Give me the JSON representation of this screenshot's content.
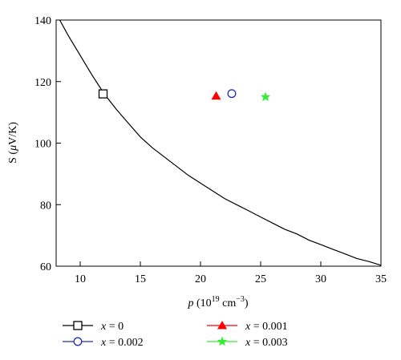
{
  "chart_data": {
    "type": "scatter",
    "title": "",
    "xlabel": "p (10^19 cm^-3)",
    "ylabel": "S (μV/K)",
    "xlim": [
      8,
      35
    ],
    "ylim": [
      60,
      140
    ],
    "xticks": [
      10,
      15,
      20,
      25,
      30,
      35
    ],
    "yticks": [
      60,
      80,
      100,
      120,
      140
    ],
    "grid": false,
    "legend_position": "bottom",
    "curve": {
      "x": [
        8.3,
        9,
        10,
        11,
        12,
        13,
        14,
        15,
        16,
        17,
        18,
        19,
        20,
        21,
        22,
        23,
        24,
        25,
        26,
        27,
        28,
        29,
        30,
        31,
        32,
        33,
        34,
        35
      ],
      "y": [
        140,
        135,
        128.5,
        122,
        116,
        111,
        106.5,
        102,
        98.5,
        95.5,
        92.5,
        89.5,
        87,
        84.5,
        82,
        80,
        78,
        76,
        74,
        72,
        70.5,
        68.5,
        67,
        65.5,
        64,
        62.5,
        61.5,
        60.3
      ],
      "color": "#000000"
    },
    "series": [
      {
        "name": "x = 0",
        "x": 11.9,
        "y": 116,
        "marker": "square-open",
        "color": "#000000"
      },
      {
        "name": "x = 0.001",
        "x": 21.3,
        "y": 115.3,
        "marker": "triangle-filled",
        "color": "#ff0000"
      },
      {
        "name": "x = 0.002",
        "x": 22.6,
        "y": 116.1,
        "marker": "circle-open",
        "color": "#1f2fb4"
      },
      {
        "name": "x = 0.003",
        "x": 25.4,
        "y": 115,
        "marker": "star-filled",
        "color": "#33ee33"
      }
    ]
  }
}
